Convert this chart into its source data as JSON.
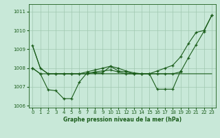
{
  "title": "Graphe pression niveau de la mer (hPa)",
  "background_color": "#c8e8d8",
  "grid_color": "#a0c8b0",
  "line_color": "#1a5c1a",
  "x_values": [
    0,
    1,
    2,
    3,
    4,
    5,
    6,
    7,
    8,
    9,
    10,
    11,
    12,
    13,
    14,
    15,
    16,
    17,
    18,
    19,
    20,
    21,
    22,
    23
  ],
  "series": [
    {
      "y": [
        1009.2,
        1008.0,
        1007.7,
        1007.7,
        1007.7,
        1007.7,
        1007.7,
        1007.7,
        1007.7,
        1007.7,
        1007.7,
        1007.7,
        1007.7,
        1007.7,
        1007.7,
        1007.7,
        1007.7,
        1007.7,
        1007.7,
        1007.7,
        1007.7,
        1007.7,
        1007.7,
        1007.7
      ],
      "marker": null,
      "lw": 0.8
    },
    {
      "y": [
        1009.2,
        1008.0,
        1007.7,
        1007.7,
        1007.7,
        1007.7,
        1007.7,
        1007.8,
        1007.9,
        1008.0,
        1008.1,
        1008.0,
        1007.85,
        1007.75,
        1007.7,
        1007.7,
        1007.85,
        1008.0,
        1008.15,
        1008.6,
        1009.3,
        1009.9,
        1010.0,
        1010.8
      ],
      "marker": "+",
      "lw": 0.8
    },
    {
      "y": [
        1008.0,
        1007.7,
        1006.85,
        1006.8,
        1006.38,
        1006.38,
        1007.25,
        1007.75,
        1007.75,
        1007.75,
        1008.1,
        1007.85,
        1007.8,
        1007.7,
        1007.7,
        1007.7,
        1006.88,
        1006.88,
        1006.88,
        1007.85,
        null,
        null,
        null,
        null
      ],
      "marker": "+",
      "lw": 0.8
    },
    {
      "y": [
        1008.0,
        1007.7,
        1007.7,
        1007.7,
        1007.7,
        1007.7,
        1007.7,
        1007.7,
        1007.8,
        1007.85,
        1007.9,
        1007.8,
        1007.7,
        1007.7,
        1007.7,
        1007.7,
        1007.7,
        1007.7,
        1007.7,
        1007.8,
        1008.55,
        1009.25,
        1009.95,
        1010.8
      ],
      "marker": "+",
      "lw": 0.8
    }
  ],
  "ylim": [
    1005.9,
    1011.4
  ],
  "yticks": [
    1006,
    1007,
    1008,
    1009,
    1010,
    1011
  ],
  "xlim": [
    -0.5,
    23.5
  ],
  "xticks": [
    0,
    1,
    2,
    3,
    4,
    5,
    6,
    7,
    8,
    9,
    10,
    11,
    12,
    13,
    14,
    15,
    16,
    17,
    18,
    19,
    20,
    21,
    22,
    23
  ],
  "ylabel_fontsize": 5.5,
  "tick_fontsize": 5.0
}
